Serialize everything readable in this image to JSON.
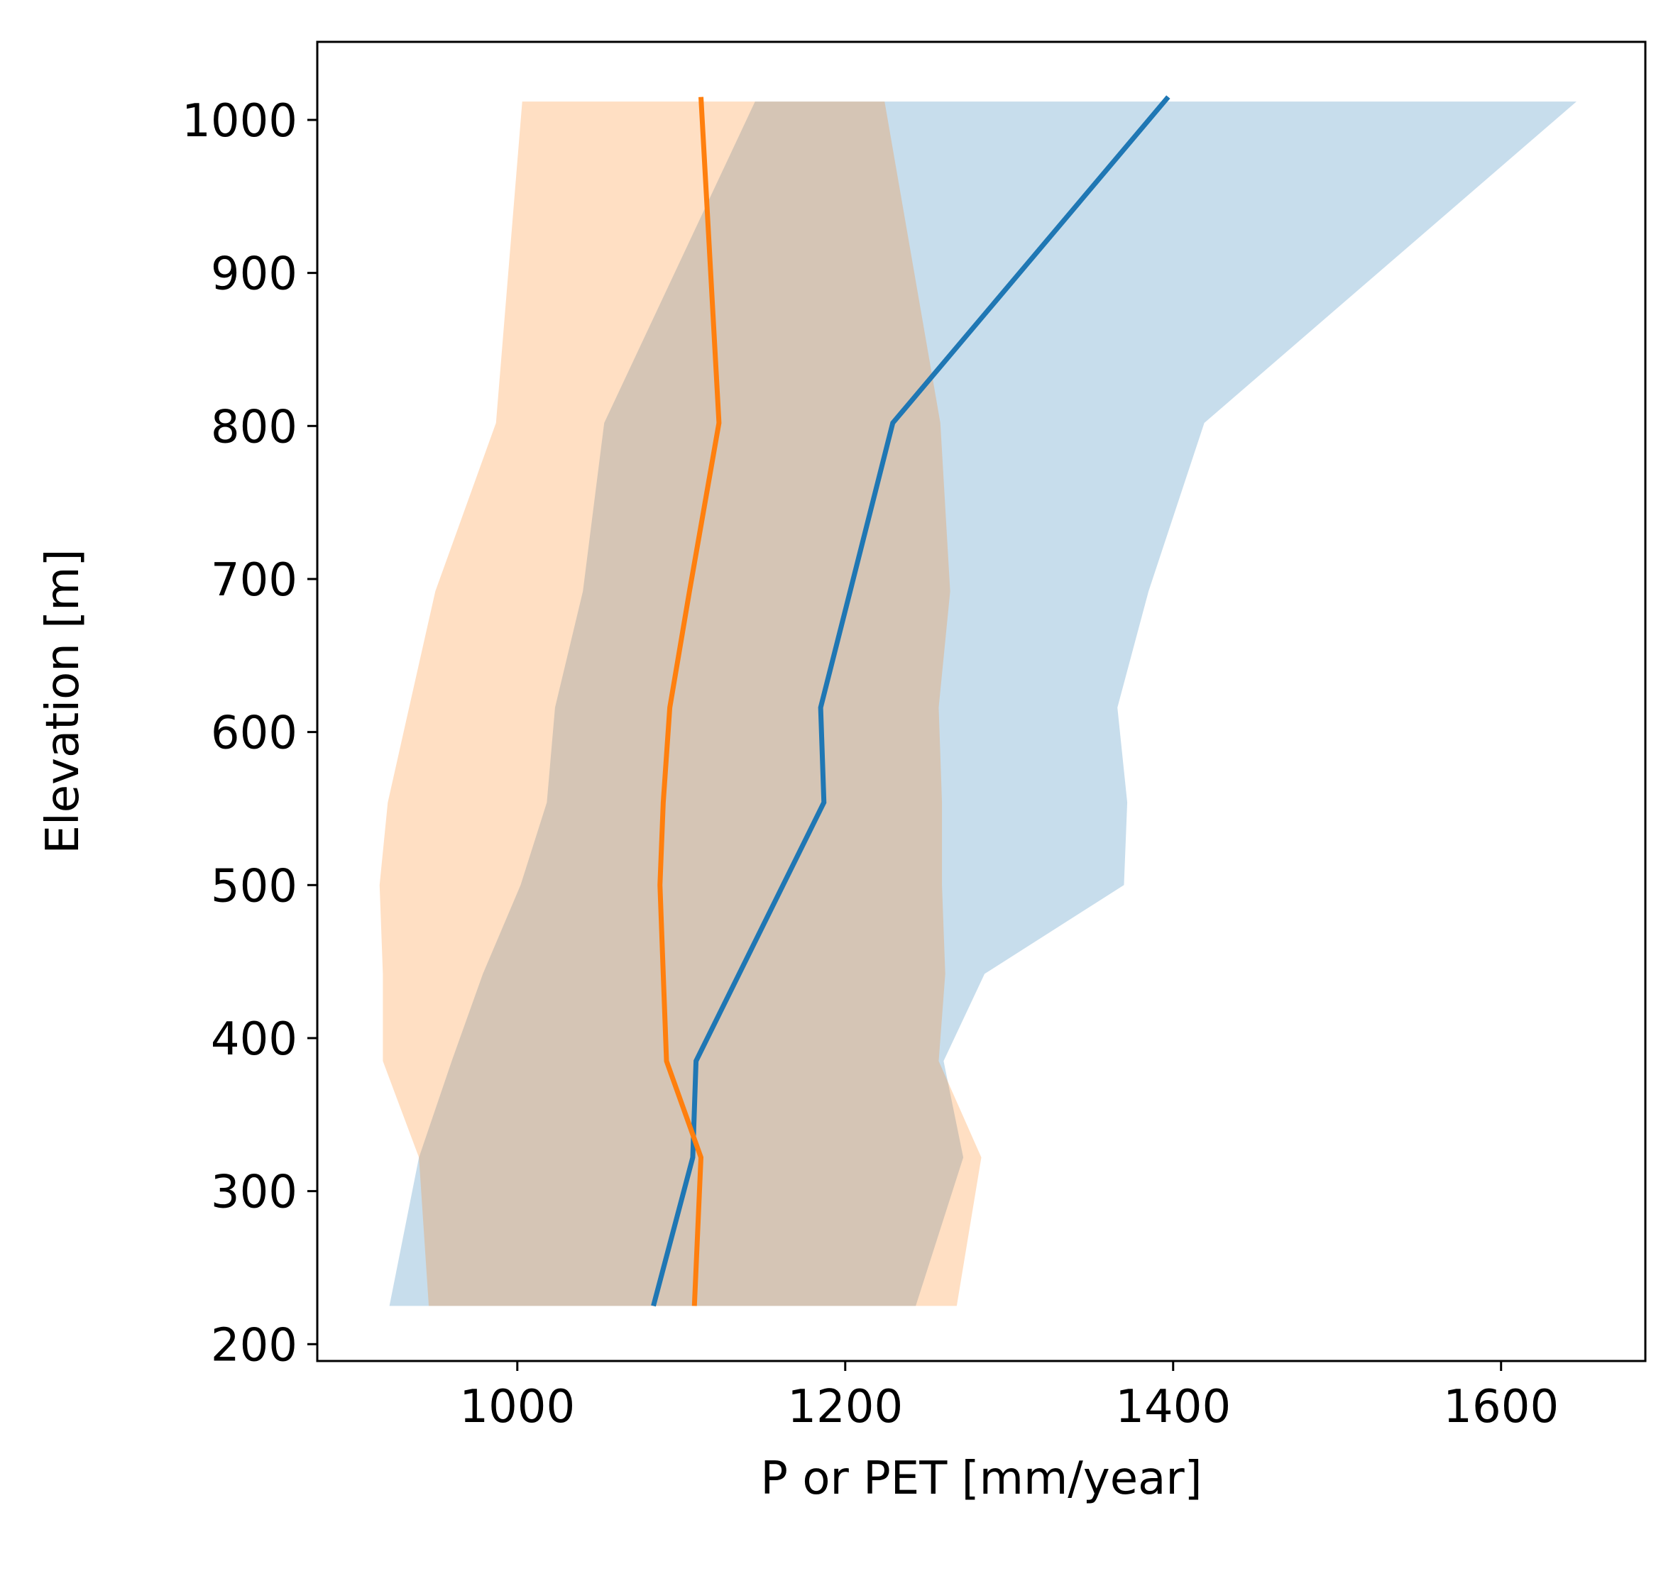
{
  "chart_data": {
    "type": "line",
    "title": "",
    "xlabel": "P or PET [mm/year]",
    "ylabel": "Elevation [m]",
    "xlim": [
      878,
      1688
    ],
    "ylim": [
      189,
      1051
    ],
    "xticks": [
      1000,
      1200,
      1400,
      1600
    ],
    "yticks": [
      200,
      300,
      400,
      500,
      600,
      700,
      800,
      900,
      1000
    ],
    "grid": false,
    "legend": "none",
    "series": [
      {
        "color": "#1f77b4",
        "y": [
          225,
          322,
          385,
          554,
          616,
          692,
          802,
          1015
        ],
        "x": [
          1083,
          1107,
          1109,
          1187,
          1185,
          1203,
          1229,
          1397
        ]
      },
      {
        "color": "#ff7f0e",
        "y": [
          225,
          322,
          385,
          442,
          500,
          554,
          616,
          692,
          802,
          1015
        ],
        "x": [
          1108,
          1112,
          1091,
          1089,
          1087,
          1089,
          1093,
          1105,
          1123,
          1112
        ]
      }
    ],
    "bands": [
      {
        "color": "#1f77b4",
        "opacity": 0.25,
        "y": [
          225,
          322,
          385,
          442,
          500,
          554,
          616,
          692,
          802,
          1012
        ],
        "lower": [
          922,
          940,
          960,
          979,
          1002,
          1018,
          1023,
          1040,
          1053,
          1145
        ],
        "upper": [
          1243,
          1272,
          1260,
          1285,
          1370,
          1372,
          1366,
          1385,
          1419,
          1646
        ]
      },
      {
        "color": "#ff7f0e",
        "opacity": 0.25,
        "y": [
          225,
          322,
          385,
          442,
          500,
          554,
          616,
          692,
          802,
          1012
        ],
        "lower": [
          946,
          940,
          918,
          918,
          916,
          921,
          934,
          950,
          987,
          1003
        ],
        "upper": [
          1268,
          1283,
          1257,
          1261,
          1259,
          1259,
          1257,
          1264,
          1258,
          1224
        ]
      }
    ]
  }
}
